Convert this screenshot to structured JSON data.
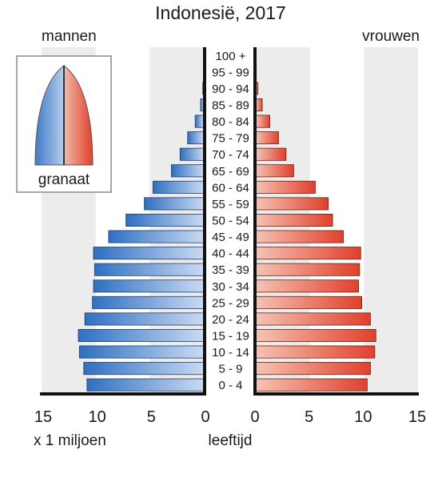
{
  "chart_data": {
    "type": "bar",
    "title": "Indonesië, 2017",
    "left_label": "mannen",
    "right_label": "vrouwen",
    "xlabel": "x 1 miljoen",
    "center_label": "leeftijd",
    "xlim": [
      0,
      15
    ],
    "x_ticks_left": [
      "15",
      "10",
      "5",
      "0"
    ],
    "x_ticks_right": [
      "0",
      "5",
      "10",
      "15"
    ],
    "categories": [
      "0 - 4",
      "5 - 9",
      "10 - 14",
      "15 - 19",
      "20 - 24",
      "25 - 29",
      "30 - 34",
      "35 - 39",
      "40 - 44",
      "45 - 49",
      "50 - 54",
      "55 - 59",
      "60 - 64",
      "65 - 69",
      "70 - 74",
      "75 - 79",
      "80 - 84",
      "85 - 89",
      "90 - 94",
      "95 - 99",
      "100 +"
    ],
    "series": [
      {
        "name": "mannen",
        "values": [
          10.8,
          11.1,
          11.5,
          11.6,
          11.0,
          10.3,
          10.2,
          10.1,
          10.2,
          8.8,
          7.2,
          5.5,
          4.7,
          3.0,
          2.2,
          1.5,
          0.8,
          0.3,
          0.1,
          0.03,
          0.01
        ]
      },
      {
        "name": "vrouwen",
        "values": [
          10.3,
          10.6,
          11.0,
          11.1,
          10.6,
          9.8,
          9.5,
          9.6,
          9.7,
          8.1,
          7.1,
          6.7,
          5.5,
          3.5,
          2.8,
          2.1,
          1.3,
          0.6,
          0.2,
          0.05,
          0.02
        ]
      }
    ],
    "grid": "alternating vertical bands",
    "colors": {
      "male": "#3d7cc8",
      "female": "#e45a44",
      "band": "#ececec",
      "axis": "#111111"
    }
  },
  "legend": {
    "label": "granaat"
  }
}
